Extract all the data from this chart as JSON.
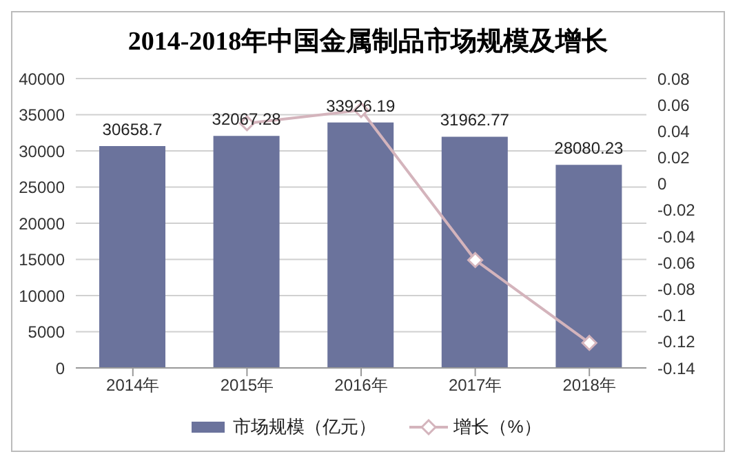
{
  "chart_data": {
    "type": "bar",
    "title": "2014-2018年中国金属制品市场规模及增长",
    "categories": [
      "2014年",
      "2015年",
      "2016年",
      "2017年",
      "2018年"
    ],
    "series": [
      {
        "name": "市场规模（亿元）",
        "color": "#6b739c",
        "values": [
          30658.7,
          32067.28,
          33926.19,
          31962.77,
          28080.23
        ],
        "value_labels": [
          "30658.7",
          "32067.28",
          "33926.19",
          "31962.77",
          "28080.23"
        ]
      },
      {
        "name": "增长（%）",
        "type": "line",
        "axis": "y2",
        "color": "#d4b4bc",
        "marker": "diamond",
        "values": [
          null,
          0.046,
          0.056,
          -0.058,
          -0.121
        ]
      }
    ],
    "ylim": [
      0,
      40000
    ],
    "yticks": [
      0,
      5000,
      10000,
      15000,
      20000,
      25000,
      30000,
      35000,
      40000
    ],
    "y2lim": [
      -0.14,
      0.08
    ],
    "y2ticks": [
      -0.14,
      -0.12,
      -0.1,
      -0.08,
      -0.06,
      -0.04,
      -0.02,
      0,
      0.02,
      0.04,
      0.06,
      0.08
    ],
    "grid": "y",
    "legend": "bottom"
  }
}
